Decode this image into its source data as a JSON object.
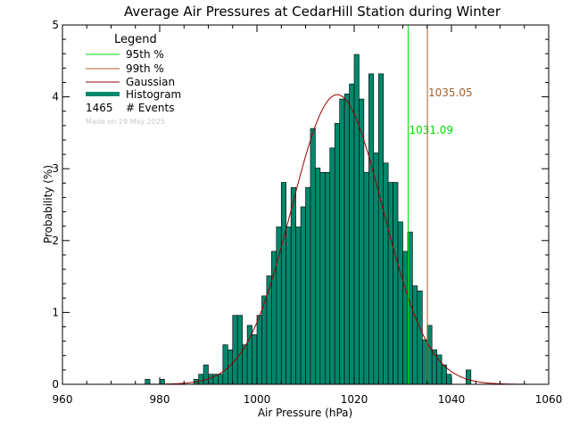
{
  "chart_data": {
    "type": "bar",
    "title": "Average Air Pressures at CedarHill Station during Winter",
    "xlabel": "Air Pressure (hPa)",
    "ylabel": "Probability (%)",
    "xlim": [
      960,
      1060
    ],
    "ylim": [
      0,
      5
    ],
    "xticks": [
      960,
      980,
      1000,
      1020,
      1040,
      1060
    ],
    "yticks": [
      0,
      1,
      2,
      3,
      4,
      5
    ],
    "bin_width": 1,
    "histogram": {
      "x": [
        977,
        980,
        987,
        988,
        989,
        990,
        991,
        992,
        993,
        994,
        995,
        996,
        997,
        998,
        999,
        1000,
        1001,
        1002,
        1003,
        1004,
        1005,
        1006,
        1007,
        1008,
        1009,
        1010,
        1011,
        1012,
        1013,
        1014,
        1015,
        1016,
        1017,
        1018,
        1019,
        1020,
        1021,
        1022,
        1023,
        1024,
        1025,
        1026,
        1027,
        1028,
        1029,
        1030,
        1031,
        1032,
        1033,
        1034,
        1035,
        1036,
        1037,
        1038,
        1039,
        1043
      ],
      "values": [
        0.07,
        0.07,
        0.07,
        0.14,
        0.27,
        0.14,
        0.14,
        0.14,
        0.55,
        0.48,
        0.96,
        0.96,
        0.55,
        0.82,
        0.69,
        0.96,
        1.23,
        1.51,
        1.85,
        2.19,
        2.81,
        2.19,
        2.74,
        2.19,
        2.47,
        2.74,
        3.56,
        3.01,
        2.95,
        2.95,
        3.29,
        3.63,
        3.97,
        4.04,
        4.18,
        4.59,
        3.97,
        2.95,
        4.32,
        3.22,
        4.32,
        3.08,
        2.81,
        2.81,
        2.26,
        1.85,
        2.12,
        1.37,
        1.3,
        0.62,
        0.82,
        0.48,
        0.41,
        0.27,
        0.14,
        0.2
      ]
    },
    "gaussian": {
      "mean": 1016.5,
      "sigma": 9.4,
      "peak": 4.03
    },
    "percentiles": [
      {
        "name": "95th %",
        "value": 1031.09,
        "label": "1031.09",
        "color": "#00dd00"
      },
      {
        "name": "99th %",
        "value": 1035.05,
        "label": "1035.05",
        "color": "#a0602a"
      }
    ],
    "legend": {
      "title": "Legend",
      "items": [
        {
          "label": "95th %",
          "color": "#00dd00",
          "style": "line"
        },
        {
          "label": "99th %",
          "color": "#a0602a",
          "style": "line"
        },
        {
          "label": "Gaussian",
          "color": "#990000",
          "style": "line"
        },
        {
          "label": "Histogram",
          "color": "#00876c",
          "style": "thick"
        }
      ],
      "events_count": "1465",
      "events_label": "# Events",
      "made_on": "Made on 29 May 2025"
    },
    "colors": {
      "bar_fill": "#00876c",
      "bar_edge": "#000000",
      "gaussian": "#990000",
      "p95": "#00dd00",
      "p99": "#a0602a",
      "made_text": "#c8c8c8"
    }
  }
}
